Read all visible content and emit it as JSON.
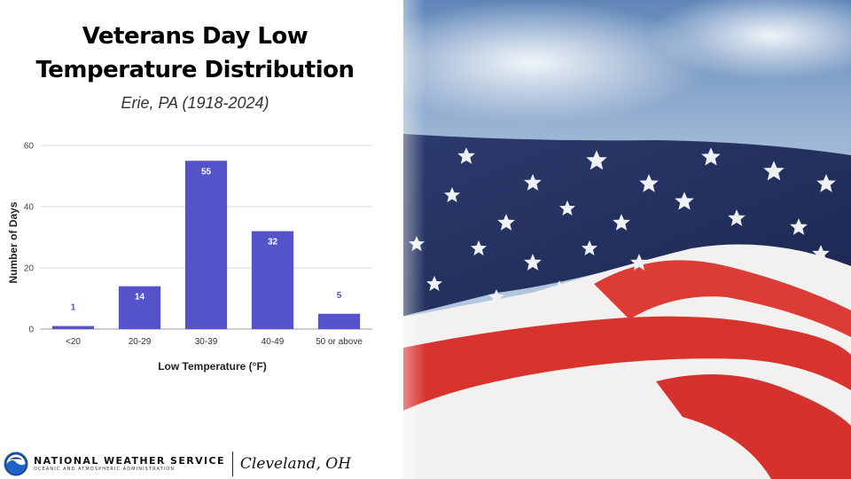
{
  "title_line1": "Veterans Day Low",
  "title_line2": "Temperature Distribution",
  "subtitle": "Erie, PA (1918-2024)",
  "footer": {
    "agency": "NATIONAL WEATHER SERVICE",
    "agency_sub": "OCEANIC AND ATMOSPHERIC ADMINISTRATION",
    "office": "Cleveland, OH"
  },
  "colors": {
    "bar": "#5453c9",
    "grid": "#d9d9d9"
  },
  "chart_data": {
    "type": "bar",
    "categories": [
      "<20",
      "20-29",
      "30-39",
      "40-49",
      "50 or above"
    ],
    "values": [
      1,
      14,
      55,
      32,
      5
    ],
    "xlabel": "Low Temperature (°F)",
    "ylabel": "Number of Days",
    "ylim": [
      0,
      60
    ],
    "yticks": [
      0,
      20,
      40,
      60
    ],
    "grid": true,
    "data_labels": true
  }
}
